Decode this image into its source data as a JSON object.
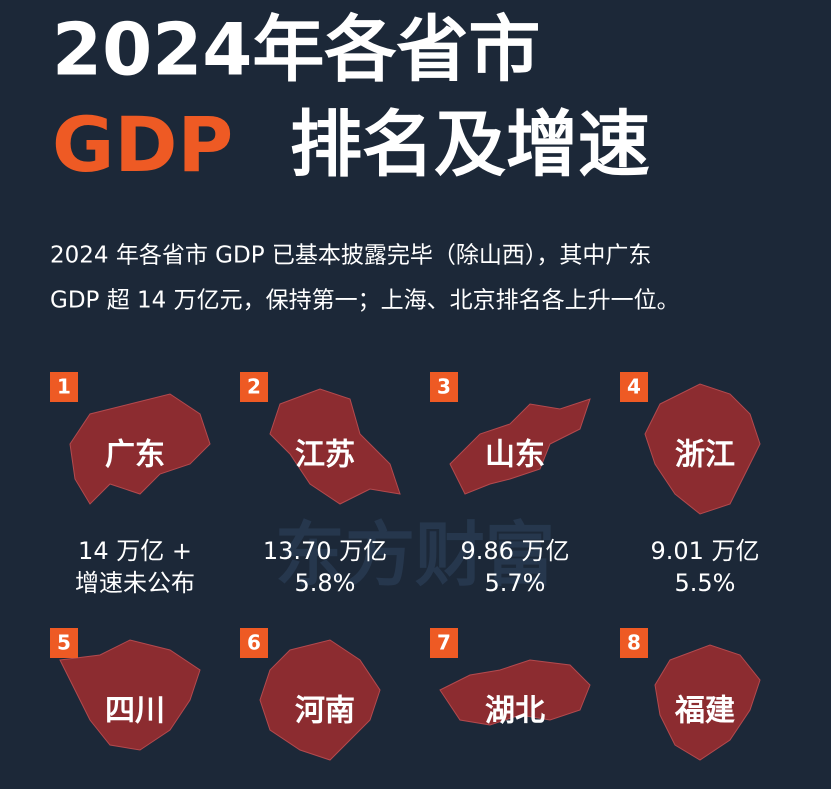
{
  "header": {
    "title_line1": "2024年各省市",
    "title_gdp": "GDP",
    "title_rest": "排名及增速"
  },
  "description": [
    "2024 年各省市 GDP 已基本披露完毕（除山西），其中广东",
    "GDP 超 14 万亿元，保持第一；上海、北京排名各上升一位。"
  ],
  "watermark": "东方财富",
  "cards": [
    {
      "rank": "1",
      "name": "广东",
      "gdp": "14 万亿 +",
      "growth": "增速未公布"
    },
    {
      "rank": "2",
      "name": "江苏",
      "gdp": "13.70 万亿",
      "growth": "5.8%"
    },
    {
      "rank": "3",
      "name": "山东",
      "gdp": "9.86 万亿",
      "growth": "5.7%"
    },
    {
      "rank": "4",
      "name": "浙江",
      "gdp": "9.01 万亿",
      "growth": "5.5%"
    },
    {
      "rank": "5",
      "name": "四川"
    },
    {
      "rank": "6",
      "name": "河南"
    },
    {
      "rank": "7",
      "name": "湖北"
    },
    {
      "rank": "8",
      "name": "福建"
    }
  ]
}
